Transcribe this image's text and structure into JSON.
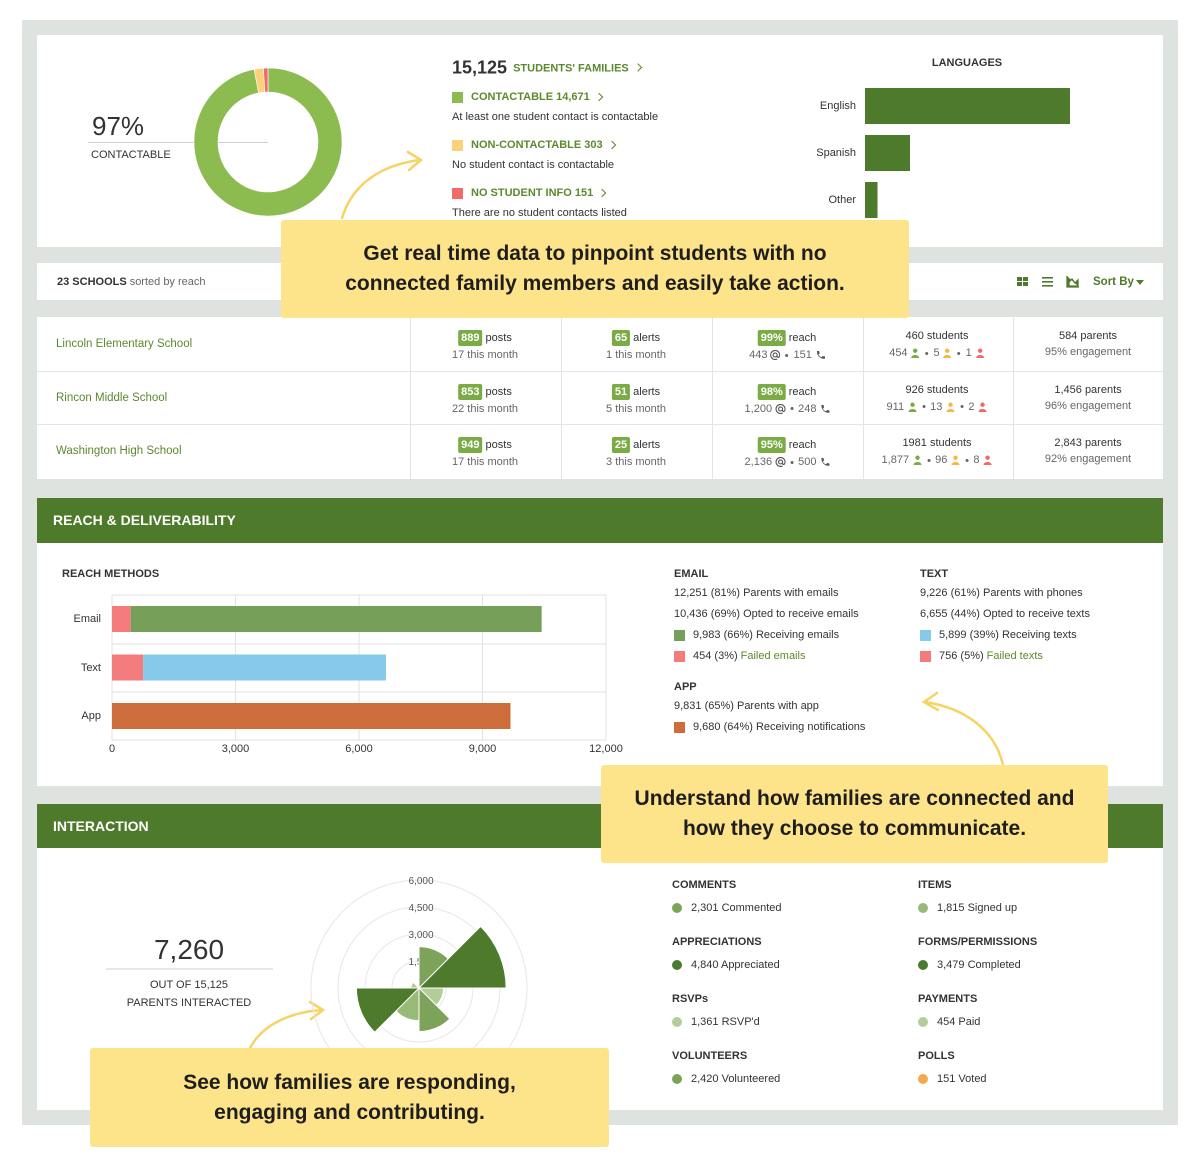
{
  "summary": {
    "percent": "97%",
    "percent_label": "CONTACTABLE",
    "total": "15,125",
    "total_label": "STUDENTS' FAMILIES",
    "donut": {
      "type": "pie",
      "categories": [
        "CONTACTABLE",
        "NON-CONTACTABLE",
        "NO STUDENT INFO"
      ],
      "values": [
        14671,
        303,
        151
      ],
      "value_labels": [
        "14,671",
        "303",
        "151"
      ],
      "descriptions": [
        "At least one student contact is contactable",
        "No student contact is contactable",
        "There are no student contacts listed"
      ],
      "colors": [
        "#8cbb4f",
        "#fbd27a",
        "#f26b6b"
      ]
    },
    "languages": {
      "type": "bar",
      "title": "LANGUAGES",
      "categories": [
        "English",
        "Spanish",
        "Other"
      ],
      "values": [
        82,
        18,
        5
      ],
      "xlim": [
        0,
        100
      ],
      "color": "#4e7a2b"
    }
  },
  "schools": {
    "count": "23 SCHOOLS",
    "sort_note": "sorted by reach",
    "sort_by": "Sort By",
    "badge_labels": [
      "posts",
      "alerts",
      "reach"
    ],
    "rows": [
      {
        "name": "Lincoln Elementary School",
        "posts": "889",
        "posts_note": "17 this month",
        "alerts": "65",
        "alerts_note": "1 this month",
        "reach": "99%",
        "email": "443",
        "phone": "151",
        "students": "460 students",
        "connected": "454",
        "partial": "5",
        "none": "1",
        "parents": "584 parents",
        "engagement": "95% engagement"
      },
      {
        "name": "Rincon Middle School",
        "posts": "853",
        "posts_note": "22 this month",
        "alerts": "51",
        "alerts_note": "5 this month",
        "reach": "98%",
        "email": "1,200",
        "phone": "248",
        "students": "926 students",
        "connected": "911",
        "partial": "13",
        "none": "2",
        "parents": "1,456 parents",
        "engagement": "96% engagement"
      },
      {
        "name": "Washington High School",
        "posts": "949",
        "posts_note": "17 this month",
        "alerts": "25",
        "alerts_note": "3 this month",
        "reach": "95%",
        "email": "2,136",
        "phone": "500",
        "students": "1981 students",
        "connected": "1,877",
        "partial": "96",
        "none": "8",
        "parents": "2,843 parents",
        "engagement": "92% engagement"
      }
    ]
  },
  "reach": {
    "title": "REACH & DELIVERABILITY",
    "chart": {
      "type": "bar",
      "title": "REACH METHODS",
      "categories": [
        "Email",
        "Text",
        "App"
      ],
      "series": [
        {
          "color": "#f47b7b",
          "values": [
            454,
            756,
            null
          ]
        },
        {
          "colors": [
            "#76a05a",
            "#87c9ea",
            "#cd6d3b"
          ],
          "values": [
            9983,
            5899,
            9680
          ]
        }
      ],
      "xlim": [
        0,
        12000
      ],
      "xticks": [
        0,
        {
          "value": 3000,
          "label": "3,000"
        },
        {
          "value": 6000,
          "label": "6,000"
        },
        {
          "value": 9000,
          "label": "9,000"
        },
        {
          "value": 12000,
          "label": "12,000"
        }
      ],
      "grid": true
    },
    "stats": [
      {
        "title": "EMAIL",
        "lines": [
          "12,251 (81%) Parents with emails",
          "10,436 (69%) Opted to receive emails"
        ],
        "legend": [
          {
            "text": "9,983 (66%) Receiving emails",
            "color": "#76a05a"
          },
          {
            "text": "454 (3%)",
            "link": "Failed emails",
            "color": "#f47b7b"
          }
        ]
      },
      {
        "title": "TEXT",
        "lines": [
          "9,226 (61%) Parents with phones",
          "6,655 (44%) Opted to receive texts"
        ],
        "legend": [
          {
            "text": "5,899 (39%) Receiving texts",
            "color": "#87c9ea"
          },
          {
            "text": "756 (5%)",
            "link": "Failed texts",
            "color": "#f47b7b"
          }
        ]
      },
      {
        "title": "APP",
        "lines": [
          "9,831 (65%) Parents with app"
        ],
        "legend": [
          {
            "text": "9,680 (64%) Receiving notifications",
            "color": "#cd6d3b"
          }
        ]
      }
    ]
  },
  "interaction": {
    "title": "INTERACTION",
    "count": "7,260",
    "out_of": "OUT OF 15,125",
    "count_label": "PARENTS INTERACTED",
    "chart": {
      "type": "polar",
      "values": [
        2301,
        4840,
        1361,
        2420,
        1815,
        3479,
        454,
        151
      ],
      "colors": [
        "#7da35a",
        "#4e7a2b",
        "#b3cd98",
        "#7da35a",
        "#98ba78",
        "#4e7a2b",
        "#b3cd98",
        "#f5a94a"
      ],
      "rlim": [
        0,
        6000
      ],
      "rticks": [
        {
          "value": 1500,
          "label": "1,500"
        },
        {
          "value": 3000,
          "label": "3,000"
        },
        {
          "value": 4500,
          "label": "4,500"
        },
        {
          "value": 6000,
          "label": "6,000"
        }
      ]
    },
    "groups": [
      {
        "title": "COMMENTS",
        "text": "2,301 Commented"
      },
      {
        "title": "APPRECIATIONS",
        "text": "4,840 Appreciated"
      },
      {
        "title": "RSVPs",
        "text": "1,361 RSVP'd"
      },
      {
        "title": "VOLUNTEERS",
        "text": "2,420 Volunteered"
      },
      {
        "title": "ITEMS",
        "text": "1,815 Signed up"
      },
      {
        "title": "FORMS/PERMISSIONS",
        "text": "3,479 Completed"
      },
      {
        "title": "PAYMENTS",
        "text": "454 Paid"
      },
      {
        "title": "POLLS",
        "text": "151 Voted"
      }
    ]
  },
  "callouts": [
    "Get real time data to pinpoint students with no connected family members and easily take action.",
    "Understand how families are connected and how they choose to communicate.",
    "See how families are responding, engaging and contributing."
  ]
}
